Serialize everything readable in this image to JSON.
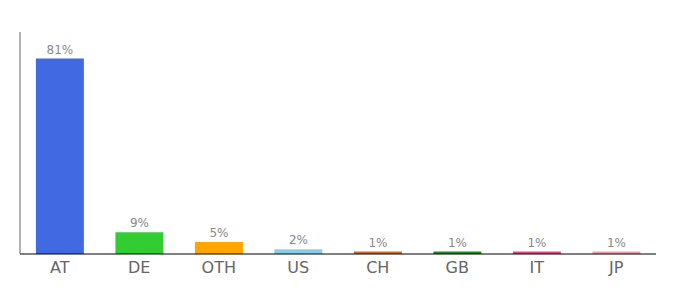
{
  "chart_data": {
    "type": "bar",
    "categories": [
      "AT",
      "DE",
      "OTH",
      "US",
      "CH",
      "GB",
      "IT",
      "JP"
    ],
    "values": [
      81,
      9,
      5,
      2,
      1,
      1,
      1,
      1
    ],
    "value_labels": [
      "81%",
      "9%",
      "5%",
      "2%",
      "1%",
      "1%",
      "1%",
      "1%"
    ],
    "colors": [
      "#4169e1",
      "#32cd32",
      "#ffa500",
      "#87ceeb",
      "#cd6e2e",
      "#228b22",
      "#e8457a",
      "#f0a0b0"
    ],
    "ylim": [
      0,
      92
    ],
    "data_labels": true,
    "tick_labels": "x",
    "grid": false
  }
}
